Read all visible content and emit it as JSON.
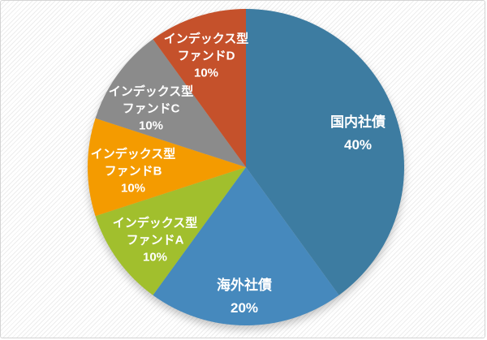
{
  "chart_data": {
    "type": "pie",
    "title": "",
    "legend_position": "none",
    "data_labels": "inside: category name + percentage",
    "start_angle_deg": 0,
    "direction": "clockwise",
    "unit": "%",
    "categories": [
      "国内社債",
      "海外社債",
      "インデックス型ファンドA",
      "インデックス型ファンドB",
      "インデックス型ファンドC",
      "インデックス型ファンドD"
    ],
    "values": [
      40,
      20,
      10,
      10,
      10,
      10
    ],
    "slices": [
      {
        "name": "国内社債",
        "value": 40,
        "pct_text": "40%",
        "color": "#3D7CA1",
        "label_lines": [
          "国内社債",
          "40%"
        ]
      },
      {
        "name": "海外社債",
        "value": 20,
        "pct_text": "20%",
        "color": "#4689BD",
        "label_lines": [
          "海外社債",
          "20%"
        ]
      },
      {
        "name": "インデックス型ファンドA",
        "value": 10,
        "pct_text": "10%",
        "color": "#A1BF2D",
        "label_lines": [
          "インデックス型",
          "ファンドA",
          "10%"
        ]
      },
      {
        "name": "インデックス型ファンドB",
        "value": 10,
        "pct_text": "10%",
        "color": "#F49B00",
        "label_lines": [
          "インデックス型",
          "ファンドB",
          "10%"
        ]
      },
      {
        "name": "インデックス型ファンドC",
        "value": 10,
        "pct_text": "10%",
        "color": "#8B8B8B",
        "label_lines": [
          "インデックス型",
          "ファンドC",
          "10%"
        ]
      },
      {
        "name": "インデックス型ファンドD",
        "value": 10,
        "pct_text": "10%",
        "color": "#C5512B",
        "label_lines": [
          "インデックス型",
          "ファンドD",
          "10%"
        ]
      }
    ]
  }
}
